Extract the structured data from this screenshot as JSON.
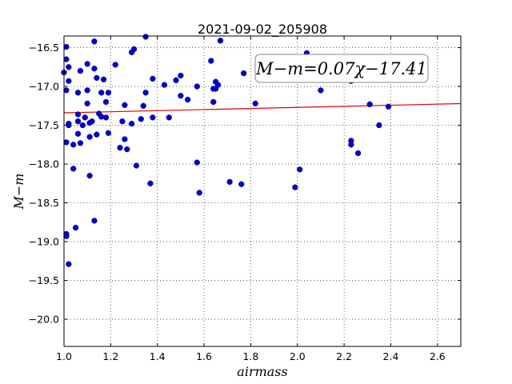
{
  "chart_data": {
    "type": "scatter",
    "title": "2021-09-02_205908",
    "xlabel": "airmass",
    "ylabel": "M−m",
    "xlim": [
      1.0,
      2.7
    ],
    "ylim": [
      -20.35,
      -16.35
    ],
    "y_inverted": true,
    "grid": true,
    "x_ticks": [
      1.0,
      1.2,
      1.4,
      1.6,
      1.8,
      2.0,
      2.2,
      2.4,
      2.6
    ],
    "x_tick_labels": [
      "1.0",
      "1.2",
      "1.4",
      "1.6",
      "1.8",
      "2.0",
      "2.2",
      "2.4",
      "2.6"
    ],
    "y_ticks": [
      -16.5,
      -17.0,
      -17.5,
      -18.0,
      -18.5,
      -19.0,
      -19.5,
      -20.0
    ],
    "y_tick_labels": [
      "−16.5",
      "−17.0",
      "−17.5",
      "−18.0",
      "−18.5",
      "−19.0",
      "−19.5",
      "−20.0"
    ],
    "annotation": "M−m=0.07χ−17.41",
    "fit": {
      "slope": 0.07,
      "intercept": -17.41,
      "color": "#e00000"
    },
    "point_color": "#0000cc",
    "points": [
      [
        1.0,
        -16.82
      ],
      [
        1.01,
        -16.49
      ],
      [
        1.01,
        -16.65
      ],
      [
        1.02,
        -16.75
      ],
      [
        1.02,
        -16.93
      ],
      [
        1.01,
        -17.05
      ],
      [
        1.01,
        -17.72
      ],
      [
        1.02,
        -17.48
      ],
      [
        1.02,
        -17.5
      ],
      [
        1.04,
        -17.75
      ],
      [
        1.04,
        -18.06
      ],
      [
        1.02,
        -19.29
      ],
      [
        1.05,
        -18.82
      ],
      [
        1.01,
        -18.9
      ],
      [
        1.01,
        -18.93
      ],
      [
        1.06,
        -17.36
      ],
      [
        1.06,
        -17.45
      ],
      [
        1.06,
        -17.61
      ],
      [
        1.06,
        -17.08
      ],
      [
        1.07,
        -16.8
      ],
      [
        1.07,
        -17.73
      ],
      [
        1.08,
        -17.5
      ],
      [
        1.09,
        -17.4
      ],
      [
        1.1,
        -17.05
      ],
      [
        1.1,
        -16.71
      ],
      [
        1.1,
        -17.22
      ],
      [
        1.11,
        -17.47
      ],
      [
        1.11,
        -17.65
      ],
      [
        1.12,
        -17.45
      ],
      [
        1.11,
        -18.15
      ],
      [
        1.13,
        -18.73
      ],
      [
        1.13,
        -16.77
      ],
      [
        1.13,
        -16.42
      ],
      [
        1.14,
        -16.89
      ],
      [
        1.14,
        -17.62
      ],
      [
        1.15,
        -17.35
      ],
      [
        1.16,
        -17.39
      ],
      [
        1.16,
        -17.08
      ],
      [
        1.17,
        -16.91
      ],
      [
        1.18,
        -17.2
      ],
      [
        1.18,
        -17.4
      ],
      [
        1.19,
        -17.08
      ],
      [
        1.19,
        -17.6
      ],
      [
        1.22,
        -16.72
      ],
      [
        1.24,
        -17.79
      ],
      [
        1.25,
        -17.45
      ],
      [
        1.26,
        -17.24
      ],
      [
        1.26,
        -17.68
      ],
      [
        1.27,
        -17.81
      ],
      [
        1.29,
        -17.48
      ],
      [
        1.29,
        -16.56
      ],
      [
        1.3,
        -16.52
      ],
      [
        1.31,
        -18.02
      ],
      [
        1.33,
        -17.42
      ],
      [
        1.34,
        -17.25
      ],
      [
        1.35,
        -17.08
      ],
      [
        1.35,
        -16.36
      ],
      [
        1.37,
        -18.25
      ],
      [
        1.38,
        -17.4
      ],
      [
        1.38,
        -16.9
      ],
      [
        1.43,
        -16.98
      ],
      [
        1.45,
        -17.4
      ],
      [
        1.48,
        -16.92
      ],
      [
        1.5,
        -16.86
      ],
      [
        1.5,
        -17.12
      ],
      [
        1.53,
        -17.17
      ],
      [
        1.57,
        -17.98
      ],
      [
        1.57,
        -17.0
      ],
      [
        1.58,
        -18.37
      ],
      [
        1.63,
        -16.67
      ],
      [
        1.64,
        -17.2
      ],
      [
        1.64,
        -17.03
      ],
      [
        1.65,
        -17.03
      ],
      [
        1.65,
        -16.94
      ],
      [
        1.66,
        -16.98
      ],
      [
        1.67,
        -16.41
      ],
      [
        1.71,
        -18.23
      ],
      [
        1.76,
        -18.26
      ],
      [
        1.77,
        -16.83
      ],
      [
        1.82,
        -17.22
      ],
      [
        1.99,
        -18.3
      ],
      [
        2.01,
        -18.07
      ],
      [
        2.04,
        -16.57
      ],
      [
        2.1,
        -17.05
      ],
      [
        2.23,
        -16.93
      ],
      [
        2.23,
        -17.7
      ],
      [
        2.23,
        -17.75
      ],
      [
        2.26,
        -17.86
      ],
      [
        2.31,
        -17.23
      ],
      [
        2.35,
        -17.5
      ],
      [
        2.39,
        -17.26
      ]
    ]
  }
}
